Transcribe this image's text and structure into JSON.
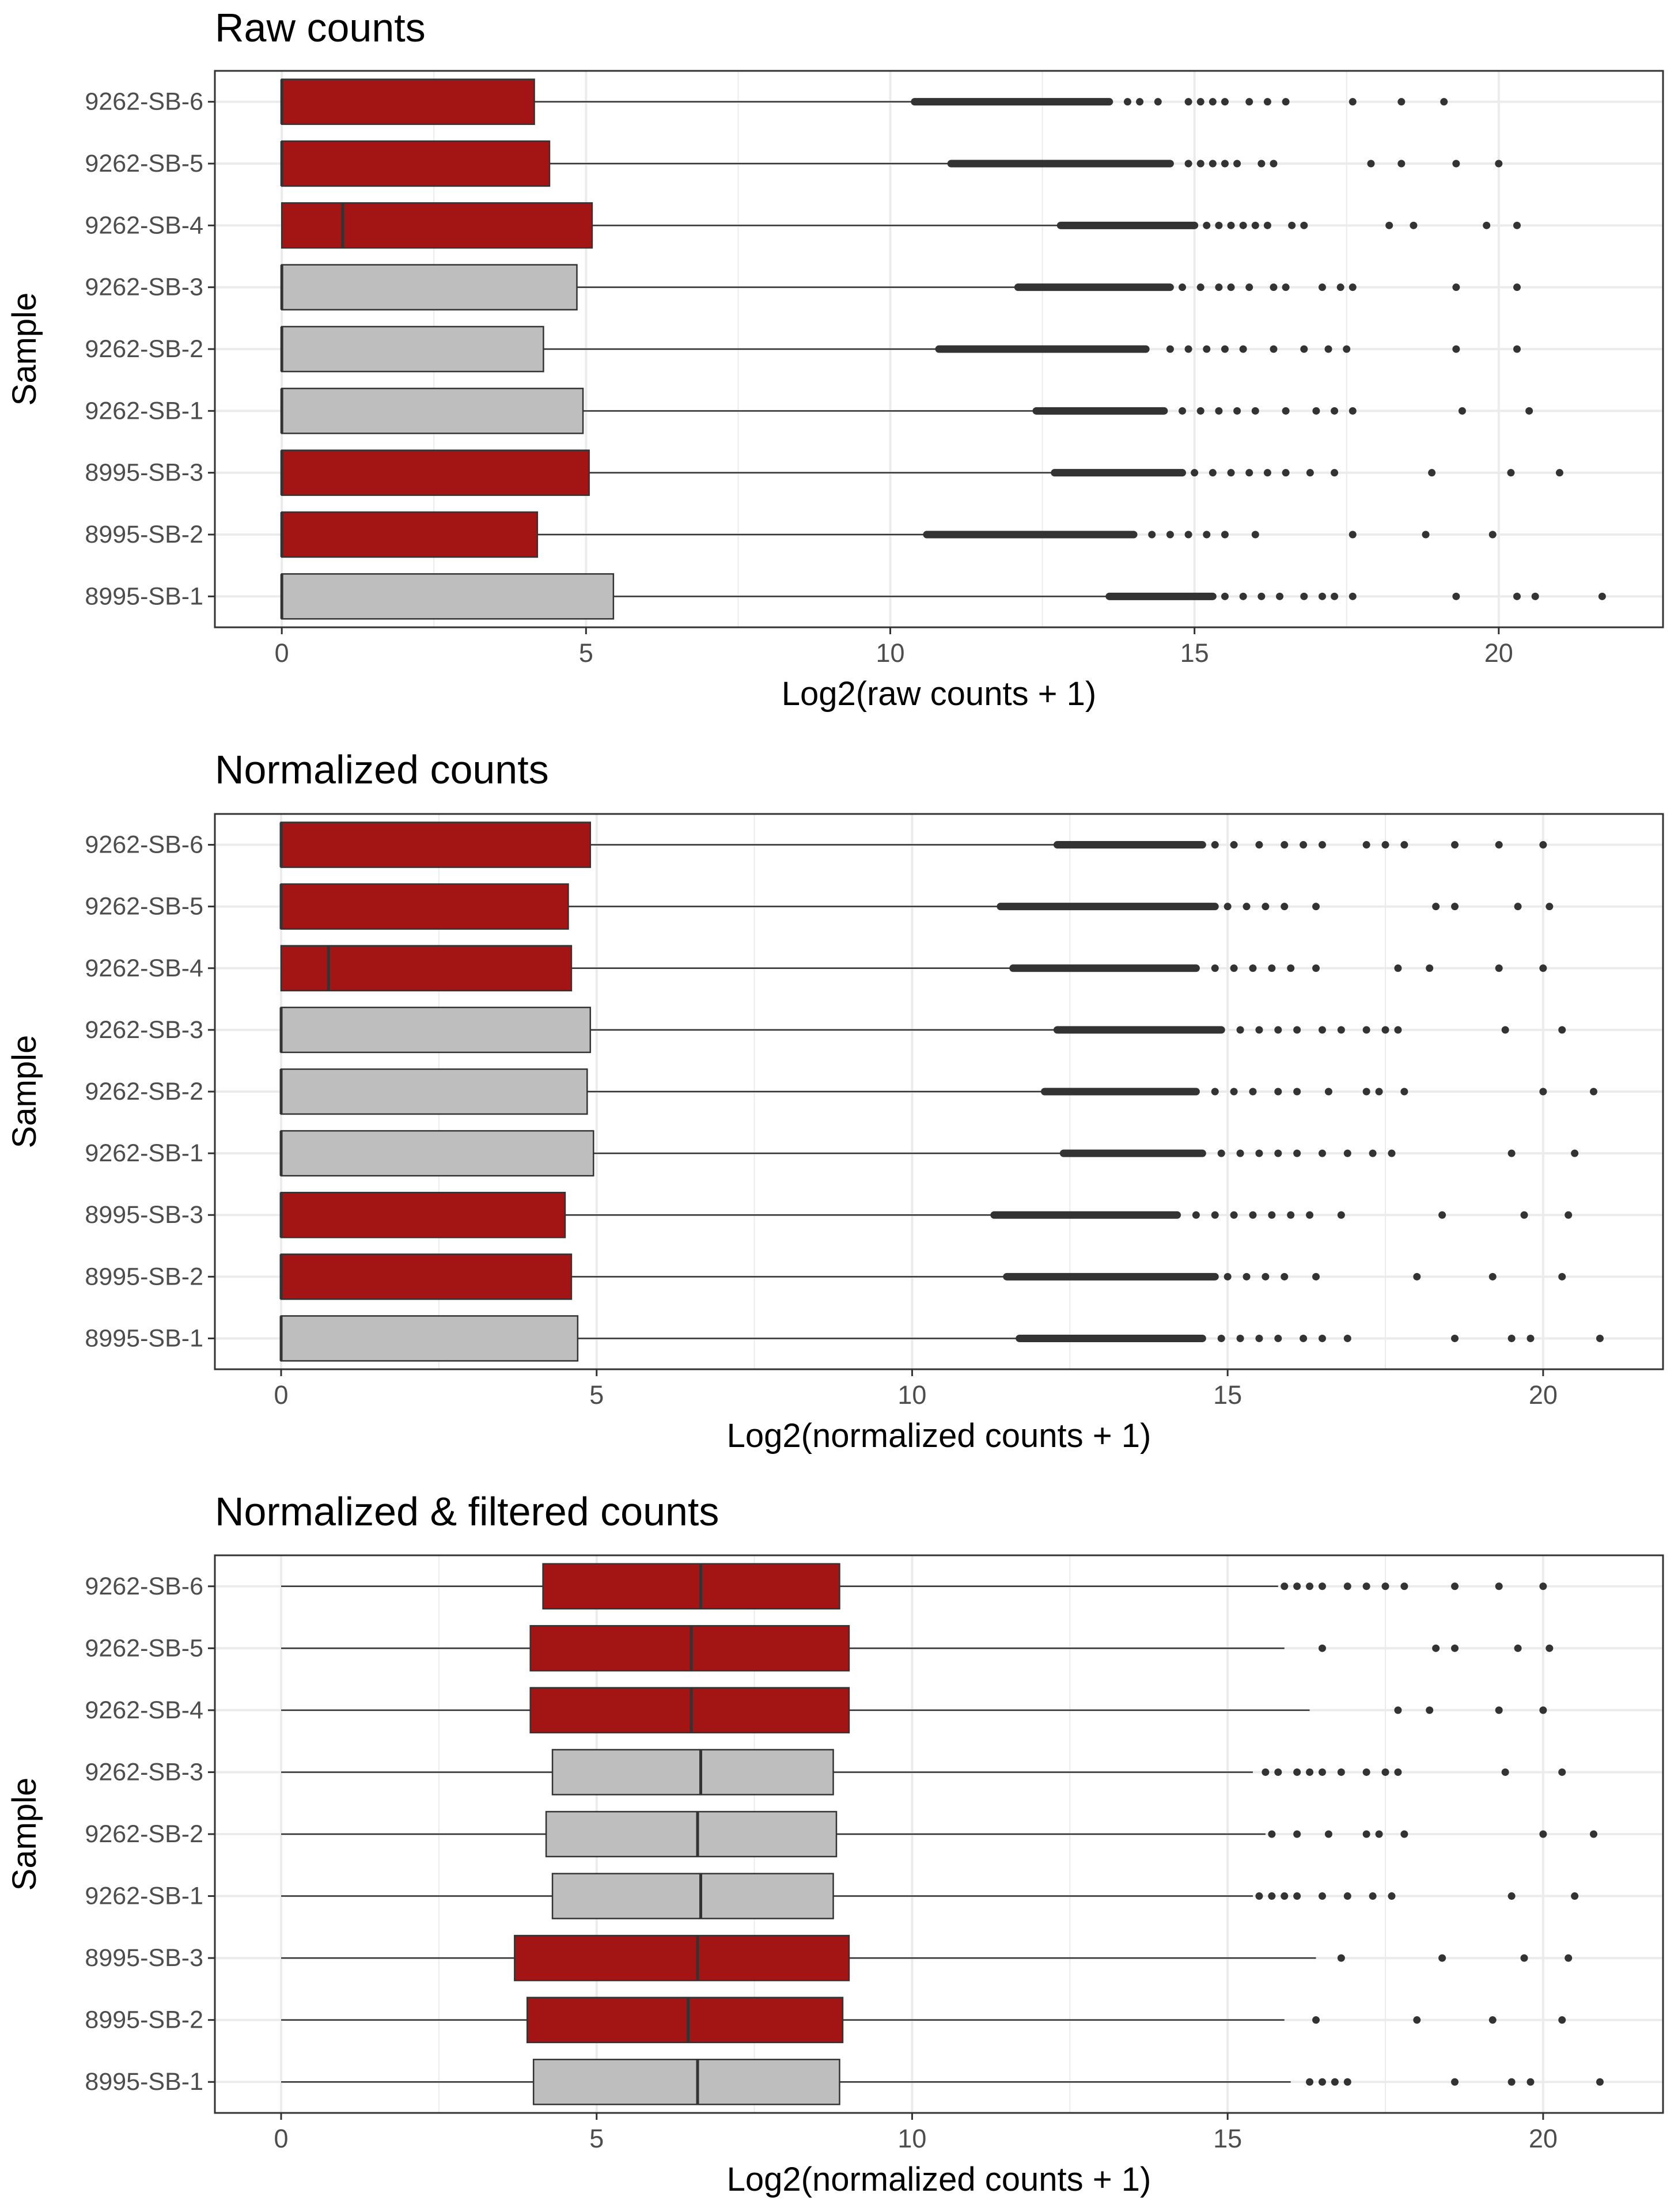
{
  "colors": {
    "highlight": "#a31515",
    "default": "#bebebe",
    "border": "#333333",
    "grid": "#ebebeb",
    "panel_border": "#333333",
    "outlier": "#333333"
  },
  "chart_data": [
    {
      "type": "box",
      "title": "Raw counts",
      "xlabel": "Log2(raw counts + 1)",
      "ylabel": "Sample",
      "xlim": [
        -1.1,
        22.7
      ],
      "xticks": [
        0,
        5,
        10,
        15,
        20
      ],
      "categories": [
        "9262-SB-6",
        "9262-SB-5",
        "9262-SB-4",
        "9262-SB-3",
        "9262-SB-2",
        "9262-SB-1",
        "8995-SB-3",
        "8995-SB-2",
        "8995-SB-1"
      ],
      "groups": [
        "highlight",
        "highlight",
        "highlight",
        "default",
        "default",
        "default",
        "highlight",
        "highlight",
        "default"
      ],
      "boxes": [
        {
          "q1": 0,
          "median": 0,
          "q3": 4.15,
          "whisker_low": 0,
          "whisker_high": 10.4,
          "outlier_band": [
            10.4,
            13.6
          ],
          "outliers": [
            13.9,
            14.1,
            14.4,
            14.9,
            15.1,
            15.3,
            15.5,
            15.9,
            16.2,
            16.5,
            17.6,
            18.4,
            19.1
          ]
        },
        {
          "q1": 0,
          "median": 0,
          "q3": 4.4,
          "whisker_low": 0,
          "whisker_high": 11.0,
          "outlier_band": [
            11.0,
            14.6
          ],
          "outliers": [
            14.9,
            15.1,
            15.3,
            15.5,
            15.7,
            16.1,
            16.3,
            17.9,
            18.4,
            19.3,
            20.0
          ]
        },
        {
          "q1": 0,
          "median": 1.0,
          "q3": 5.1,
          "whisker_low": 0,
          "whisker_high": 12.8,
          "outlier_band": [
            12.8,
            15.0
          ],
          "outliers": [
            15.2,
            15.4,
            15.6,
            15.8,
            16.0,
            16.2,
            16.6,
            16.8,
            18.2,
            18.6,
            19.8,
            20.3
          ]
        },
        {
          "q1": 0,
          "median": 0,
          "q3": 4.85,
          "whisker_low": 0,
          "whisker_high": 12.1,
          "outlier_band": [
            12.1,
            14.6
          ],
          "outliers": [
            14.8,
            15.1,
            15.4,
            15.6,
            15.9,
            16.3,
            16.5,
            17.1,
            17.4,
            17.6,
            19.3,
            20.3
          ]
        },
        {
          "q1": 0,
          "median": 0,
          "q3": 4.3,
          "whisker_low": 0,
          "whisker_high": 10.8,
          "outlier_band": [
            10.8,
            14.2
          ],
          "outliers": [
            14.6,
            14.9,
            15.2,
            15.5,
            15.8,
            16.3,
            16.8,
            17.2,
            17.5,
            19.3,
            20.3
          ]
        },
        {
          "q1": 0,
          "median": 0,
          "q3": 4.95,
          "whisker_low": 0,
          "whisker_high": 12.4,
          "outlier_band": [
            12.4,
            14.5
          ],
          "outliers": [
            14.8,
            15.1,
            15.4,
            15.7,
            16.0,
            16.5,
            17.0,
            17.3,
            17.6,
            19.4,
            20.5
          ]
        },
        {
          "q1": 0,
          "median": 0,
          "q3": 5.05,
          "whisker_low": 0,
          "whisker_high": 12.7,
          "outlier_band": [
            12.7,
            14.8
          ],
          "outliers": [
            15.0,
            15.3,
            15.6,
            15.9,
            16.2,
            16.5,
            16.9,
            17.3,
            18.9,
            20.2,
            21.0
          ]
        },
        {
          "q1": 0,
          "median": 0,
          "q3": 4.2,
          "whisker_low": 0,
          "whisker_high": 10.6,
          "outlier_band": [
            10.6,
            14.0
          ],
          "outliers": [
            14.3,
            14.6,
            14.9,
            15.2,
            15.5,
            16.0,
            17.6,
            18.8,
            19.9
          ]
        },
        {
          "q1": 0,
          "median": 0,
          "q3": 5.45,
          "whisker_low": 0,
          "whisker_high": 13.6,
          "outlier_band": [
            13.6,
            15.3
          ],
          "outliers": [
            15.5,
            15.8,
            16.1,
            16.4,
            16.8,
            17.1,
            17.3,
            17.6,
            19.3,
            20.3,
            20.6,
            21.7
          ]
        }
      ]
    },
    {
      "type": "box",
      "title": "Normalized counts",
      "xlabel": "Log2(normalized counts + 1)",
      "ylabel": "Sample",
      "xlim": [
        -1.05,
        21.9
      ],
      "xticks": [
        0,
        5,
        10,
        15,
        20
      ],
      "categories": [
        "9262-SB-6",
        "9262-SB-5",
        "9262-SB-4",
        "9262-SB-3",
        "9262-SB-2",
        "9262-SB-1",
        "8995-SB-3",
        "8995-SB-2",
        "8995-SB-1"
      ],
      "groups": [
        "highlight",
        "highlight",
        "highlight",
        "default",
        "default",
        "default",
        "highlight",
        "highlight",
        "default"
      ],
      "boxes": [
        {
          "q1": 0,
          "median": 0,
          "q3": 4.9,
          "whisker_low": 0,
          "whisker_high": 12.3,
          "outlier_band": [
            12.3,
            14.6
          ],
          "outliers": [
            14.8,
            15.1,
            15.5,
            15.9,
            16.2,
            16.5,
            17.2,
            17.5,
            17.8,
            18.6,
            19.3,
            20.0
          ]
        },
        {
          "q1": 0,
          "median": 0,
          "q3": 4.55,
          "whisker_low": 0,
          "whisker_high": 11.4,
          "outlier_band": [
            11.4,
            14.8
          ],
          "outliers": [
            15.0,
            15.3,
            15.6,
            15.9,
            16.4,
            18.3,
            18.6,
            19.6,
            20.1
          ]
        },
        {
          "q1": 0,
          "median": 0.75,
          "q3": 4.6,
          "whisker_low": 0,
          "whisker_high": 11.6,
          "outlier_band": [
            11.6,
            14.5
          ],
          "outliers": [
            14.8,
            15.1,
            15.4,
            15.7,
            16.0,
            16.4,
            17.7,
            18.2,
            19.3,
            20.0
          ]
        },
        {
          "q1": 0,
          "median": 0,
          "q3": 4.9,
          "whisker_low": 0,
          "whisker_high": 12.3,
          "outlier_band": [
            12.3,
            14.9
          ],
          "outliers": [
            15.2,
            15.5,
            15.8,
            16.1,
            16.5,
            16.8,
            17.2,
            17.5,
            17.7,
            19.4,
            20.3
          ]
        },
        {
          "q1": 0,
          "median": 0,
          "q3": 4.85,
          "whisker_low": 0,
          "whisker_high": 12.1,
          "outlier_band": [
            12.1,
            14.5
          ],
          "outliers": [
            14.8,
            15.1,
            15.4,
            15.8,
            16.1,
            16.6,
            17.2,
            17.4,
            17.8,
            20.0,
            20.8
          ]
        },
        {
          "q1": 0,
          "median": 0,
          "q3": 4.95,
          "whisker_low": 0,
          "whisker_high": 12.4,
          "outlier_band": [
            12.4,
            14.6
          ],
          "outliers": [
            14.9,
            15.2,
            15.5,
            15.8,
            16.1,
            16.5,
            16.9,
            17.3,
            17.6,
            19.5,
            20.5
          ]
        },
        {
          "q1": 0,
          "median": 0,
          "q3": 4.5,
          "whisker_low": 0,
          "whisker_high": 11.3,
          "outlier_band": [
            11.3,
            14.2
          ],
          "outliers": [
            14.5,
            14.8,
            15.1,
            15.4,
            15.7,
            16.0,
            16.3,
            16.8,
            18.4,
            19.7,
            20.4
          ]
        },
        {
          "q1": 0,
          "median": 0,
          "q3": 4.6,
          "whisker_low": 0,
          "whisker_high": 11.5,
          "outlier_band": [
            11.5,
            14.8
          ],
          "outliers": [
            15.0,
            15.3,
            15.6,
            15.9,
            16.4,
            18.0,
            19.2,
            20.3
          ]
        },
        {
          "q1": 0,
          "median": 0,
          "q3": 4.7,
          "whisker_low": 0,
          "whisker_high": 11.7,
          "outlier_band": [
            11.7,
            14.6
          ],
          "outliers": [
            14.9,
            15.2,
            15.5,
            15.8,
            16.2,
            16.5,
            16.9,
            18.6,
            19.5,
            19.8,
            20.9
          ]
        }
      ]
    },
    {
      "type": "box",
      "title": "Normalized & filtered counts",
      "xlabel": "Log2(normalized counts + 1)",
      "ylabel": "Sample",
      "xlim": [
        -1.05,
        21.9
      ],
      "xticks": [
        0,
        5,
        10,
        15,
        20
      ],
      "categories": [
        "9262-SB-6",
        "9262-SB-5",
        "9262-SB-4",
        "9262-SB-3",
        "9262-SB-2",
        "9262-SB-1",
        "8995-SB-3",
        "8995-SB-2",
        "8995-SB-1"
      ],
      "groups": [
        "highlight",
        "highlight",
        "highlight",
        "default",
        "default",
        "default",
        "highlight",
        "highlight",
        "default"
      ],
      "boxes": [
        {
          "q1": 4.15,
          "median": 6.65,
          "q3": 8.85,
          "whisker_low": 0,
          "whisker_high": 15.8,
          "outlier_band": null,
          "outliers": [
            15.9,
            16.1,
            16.3,
            16.5,
            16.9,
            17.2,
            17.5,
            17.8,
            18.6,
            19.3,
            20.0
          ]
        },
        {
          "q1": 3.95,
          "median": 6.5,
          "q3": 9.0,
          "whisker_low": 0,
          "whisker_high": 15.9,
          "outlier_band": null,
          "outliers": [
            16.5,
            18.3,
            18.6,
            19.6,
            20.1
          ]
        },
        {
          "q1": 3.95,
          "median": 6.5,
          "q3": 9.0,
          "whisker_low": 0,
          "whisker_high": 16.3,
          "outlier_band": null,
          "outliers": [
            17.7,
            18.2,
            19.3,
            20.0
          ]
        },
        {
          "q1": 4.3,
          "median": 6.65,
          "q3": 8.75,
          "whisker_low": 0,
          "whisker_high": 15.4,
          "outlier_band": null,
          "outliers": [
            15.6,
            15.8,
            16.1,
            16.3,
            16.5,
            16.8,
            17.2,
            17.5,
            17.7,
            19.4,
            20.3
          ]
        },
        {
          "q1": 4.2,
          "median": 6.6,
          "q3": 8.8,
          "whisker_low": 0,
          "whisker_high": 15.6,
          "outlier_band": null,
          "outliers": [
            15.7,
            16.1,
            16.6,
            17.2,
            17.4,
            17.8,
            20.0,
            20.8
          ]
        },
        {
          "q1": 4.3,
          "median": 6.65,
          "q3": 8.75,
          "whisker_low": 0,
          "whisker_high": 15.4,
          "outlier_band": null,
          "outliers": [
            15.5,
            15.7,
            15.9,
            16.1,
            16.5,
            16.9,
            17.3,
            17.6,
            19.5,
            20.5
          ]
        },
        {
          "q1": 3.7,
          "median": 6.6,
          "q3": 9.0,
          "whisker_low": 0,
          "whisker_high": 16.4,
          "outlier_band": null,
          "outliers": [
            16.8,
            18.4,
            19.7,
            20.4
          ]
        },
        {
          "q1": 3.9,
          "median": 6.45,
          "q3": 8.9,
          "whisker_low": 0,
          "whisker_high": 15.9,
          "outlier_band": null,
          "outliers": [
            16.4,
            18.0,
            19.2,
            20.3
          ]
        },
        {
          "q1": 4.0,
          "median": 6.6,
          "q3": 8.85,
          "whisker_low": 0,
          "whisker_high": 16.0,
          "outlier_band": null,
          "outliers": [
            16.3,
            16.5,
            16.7,
            16.9,
            18.6,
            19.5,
            19.8,
            20.9
          ]
        }
      ]
    }
  ]
}
